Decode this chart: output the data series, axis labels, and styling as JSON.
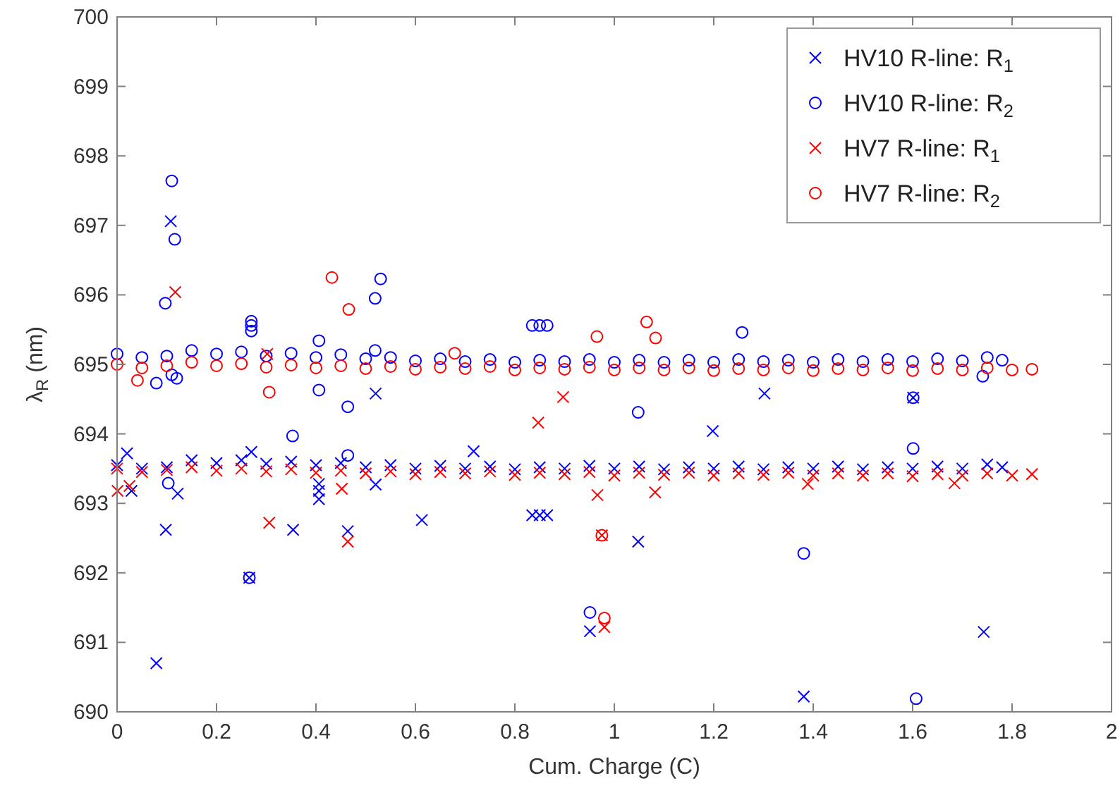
{
  "chart_data": {
    "type": "scatter",
    "xlabel": "Cum. Charge (C)",
    "ylabel": "λ$_{R}$ (nm)",
    "xlim": [
      0,
      2
    ],
    "ylim": [
      690,
      700
    ],
    "xticks": [
      0,
      0.2,
      0.4,
      0.6,
      0.8,
      1,
      1.2,
      1.4,
      1.6,
      1.8,
      2
    ],
    "yticks": [
      690,
      691,
      692,
      693,
      694,
      695,
      696,
      697,
      698,
      699,
      700
    ],
    "grid": false,
    "legend": "top right",
    "series": [
      {
        "name": "HV10 R-line: R$_{1}$",
        "color": "#0000ff",
        "marker": "cross",
        "x": [
          0,
          0.05,
          0.1,
          0.15,
          0.2,
          0.25,
          0.3,
          0.35,
          0.4,
          0.45,
          0.5,
          0.55,
          0.6,
          0.65,
          0.7,
          0.75,
          0.8,
          0.85,
          0.9,
          0.95,
          1,
          1.05,
          1.1,
          1.15,
          1.2,
          1.25,
          1.3,
          1.35,
          1.4,
          1.45,
          1.5,
          1.55,
          1.6,
          1.65,
          1.7,
          1.75,
          1.78,
          0.108,
          0.079,
          0.098,
          0.354,
          0.464,
          0.613,
          0.717,
          0.27,
          0.02,
          0.406,
          0.406,
          0.406,
          0.52,
          0.266,
          0.951,
          0.52,
          0.029,
          0.122,
          1.198,
          1.048,
          1.381,
          1.743,
          1.302,
          1.601,
          0.835,
          0.85,
          0.865
        ],
        "values": [
          693.55,
          693.5,
          693.52,
          693.62,
          693.58,
          693.62,
          693.57,
          693.6,
          693.55,
          693.58,
          693.52,
          693.55,
          693.5,
          693.54,
          693.5,
          693.53,
          693.49,
          693.52,
          693.5,
          693.54,
          693.5,
          693.53,
          693.49,
          693.52,
          693.5,
          693.53,
          693.49,
          693.52,
          693.5,
          693.53,
          693.49,
          693.52,
          693.5,
          693.53,
          693.5,
          693.56,
          693.52,
          697.06,
          690.7,
          692.62,
          692.62,
          692.6,
          692.76,
          693.75,
          693.74,
          693.72,
          693.06,
          693.18,
          693.28,
          693.27,
          691.93,
          691.16,
          694.58,
          693.18,
          693.14,
          694.04,
          692.45,
          690.22,
          691.15,
          694.58,
          694.52,
          692.83,
          692.83,
          692.83
        ]
      },
      {
        "name": "HV10 R-line: R$_{2}$",
        "color": "#0000ff",
        "marker": "circle",
        "x": [
          0,
          0.05,
          0.1,
          0.15,
          0.2,
          0.25,
          0.3,
          0.35,
          0.4,
          0.45,
          0.5,
          0.55,
          0.6,
          0.65,
          0.7,
          0.75,
          0.8,
          0.85,
          0.9,
          0.95,
          1,
          1.05,
          1.1,
          1.15,
          1.2,
          1.25,
          1.3,
          1.35,
          1.4,
          1.45,
          1.5,
          1.55,
          1.6,
          1.65,
          1.7,
          1.75,
          1.78,
          0.11,
          0.116,
          0.097,
          0.27,
          0.27,
          0.27,
          0.406,
          0.53,
          0.519,
          0.519,
          0.406,
          0.464,
          0.353,
          0.079,
          0.11,
          0.12,
          0.835,
          0.85,
          0.865,
          0.266,
          0.464,
          0.103,
          0.951,
          1.257,
          1.048,
          1.601,
          1.601,
          1.381,
          1.607,
          1.741
        ],
        "values": [
          695.15,
          695.1,
          695.12,
          695.2,
          695.15,
          695.18,
          695.12,
          695.16,
          695.1,
          695.14,
          695.08,
          695.1,
          695.05,
          695.08,
          695.04,
          695.07,
          695.03,
          695.06,
          695.04,
          695.07,
          695.03,
          695.06,
          695.03,
          695.06,
          695.03,
          695.07,
          695.04,
          695.06,
          695.03,
          695.07,
          695.04,
          695.07,
          695.04,
          695.08,
          695.05,
          695.1,
          695.06,
          697.64,
          696.8,
          695.88,
          695.62,
          695.56,
          695.48,
          695.34,
          696.23,
          695.95,
          695.2,
          694.63,
          694.39,
          693.97,
          694.73,
          694.85,
          694.8,
          695.56,
          695.56,
          695.56,
          691.93,
          693.69,
          693.29,
          691.43,
          695.46,
          694.31,
          694.52,
          693.79,
          692.28,
          690.19,
          694.83
        ]
      },
      {
        "name": "HV7 R-line: R$_{1}$",
        "color": "#ff0000",
        "marker": "cross",
        "x": [
          0,
          0.05,
          0.1,
          0.15,
          0.2,
          0.25,
          0.3,
          0.35,
          0.4,
          0.45,
          0.5,
          0.55,
          0.6,
          0.65,
          0.7,
          0.75,
          0.8,
          0.85,
          0.9,
          0.95,
          1,
          1.05,
          1.1,
          1.15,
          1.2,
          1.25,
          1.3,
          1.35,
          1.4,
          1.45,
          1.5,
          1.55,
          1.6,
          1.65,
          1.7,
          1.75,
          1.8,
          1.84,
          0.117,
          0.302,
          0.847,
          0.897,
          0.306,
          0.464,
          0.966,
          0.975,
          0.98,
          0.452,
          0.001,
          0.025,
          1.082,
          1.389,
          1.684
        ],
        "values": [
          693.5,
          693.45,
          693.48,
          693.52,
          693.47,
          693.5,
          693.46,
          693.49,
          693.44,
          693.47,
          693.43,
          693.46,
          693.42,
          693.45,
          693.43,
          693.46,
          693.41,
          693.44,
          693.42,
          693.45,
          693.4,
          693.44,
          693.41,
          693.44,
          693.4,
          693.43,
          693.41,
          693.44,
          693.4,
          693.43,
          693.4,
          693.43,
          693.39,
          693.42,
          693.4,
          693.43,
          693.4,
          693.42,
          696.04,
          695.15,
          694.16,
          694.53,
          692.72,
          692.45,
          693.12,
          692.54,
          691.22,
          693.21,
          693.18,
          693.25,
          693.16,
          693.28,
          693.29
        ]
      },
      {
        "name": "HV7 R-line: R$_{2}$",
        "color": "#ff0000",
        "marker": "circle",
        "x": [
          0,
          0.05,
          0.1,
          0.15,
          0.2,
          0.25,
          0.3,
          0.35,
          0.4,
          0.45,
          0.5,
          0.55,
          0.6,
          0.65,
          0.7,
          0.75,
          0.8,
          0.85,
          0.9,
          0.95,
          1,
          1.05,
          1.1,
          1.15,
          1.2,
          1.25,
          1.3,
          1.35,
          1.4,
          1.45,
          1.5,
          1.55,
          1.6,
          1.65,
          1.7,
          1.75,
          1.8,
          1.84,
          0.432,
          0.466,
          0.306,
          0.679,
          0.965,
          1.065,
          1.083,
          0.975,
          0.98,
          0.041
        ],
        "values": [
          695.0,
          694.95,
          694.98,
          695.03,
          694.98,
          695.01,
          694.96,
          694.99,
          694.95,
          694.98,
          694.94,
          694.97,
          694.93,
          694.96,
          694.94,
          694.97,
          694.92,
          694.95,
          694.93,
          694.96,
          694.92,
          694.95,
          694.92,
          694.95,
          694.91,
          694.94,
          694.92,
          694.95,
          694.91,
          694.94,
          694.92,
          694.95,
          694.91,
          694.94,
          694.92,
          694.95,
          694.92,
          694.93,
          696.25,
          695.79,
          694.6,
          695.16,
          695.4,
          695.61,
          695.38,
          692.54,
          691.35,
          694.77
        ]
      }
    ]
  }
}
